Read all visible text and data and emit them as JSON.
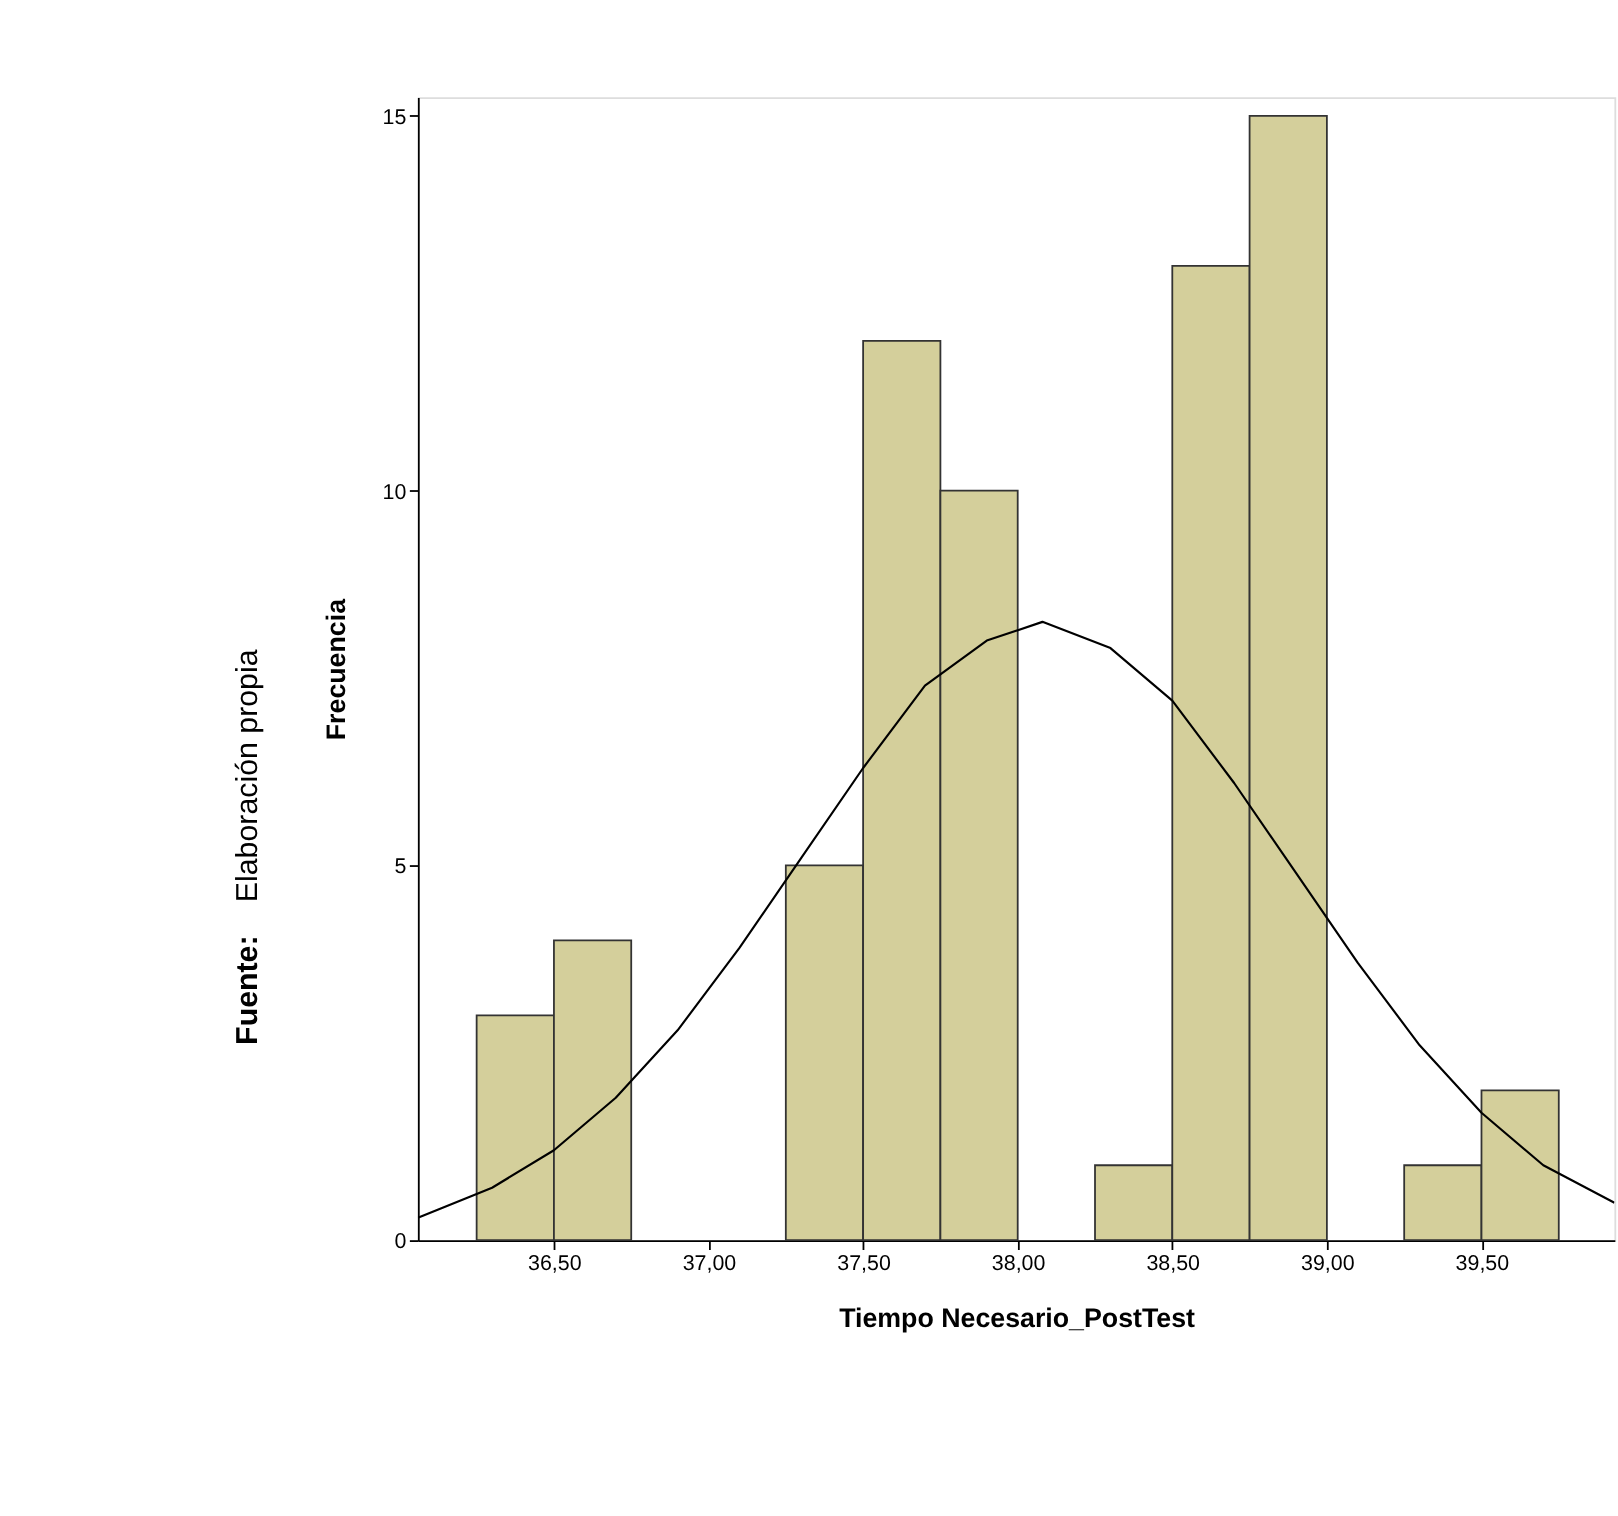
{
  "chart_data": {
    "type": "histogram",
    "xlabel": "Tiempo Necesario_PostTest",
    "ylabel": "Frecuencia",
    "annotations": [
      "Fuente:",
      "Elaboración propia"
    ],
    "bins": [
      36.25,
      36.5,
      36.75,
      37.0,
      37.25,
      37.5,
      37.75,
      38.0,
      38.25,
      38.5,
      38.75,
      39.0,
      39.25,
      39.5,
      39.75
    ],
    "values": [
      3,
      4,
      0,
      0,
      5,
      12,
      10,
      0,
      1,
      13,
      15,
      0,
      1,
      2
    ],
    "color": "#d4cf9b",
    "series": [
      {
        "type": "line",
        "color": "#000000",
        "x": [
          36.06,
          36.3,
          36.5,
          36.7,
          36.9,
          37.1,
          37.3,
          37.5,
          37.7,
          37.9,
          38.08,
          38.3,
          38.5,
          38.7,
          38.9,
          39.1,
          39.3,
          39.5,
          39.7,
          39.93
        ],
        "values": [
          0.3,
          0.7,
          1.2,
          1.9,
          2.8,
          3.9,
          5.1,
          6.3,
          7.4,
          8.0,
          8.25,
          7.9,
          7.2,
          6.1,
          4.9,
          3.7,
          2.6,
          1.7,
          1.0,
          0.5
        ]
      }
    ],
    "xlim": [
      36.06,
      39.93
    ],
    "ylim": [
      0,
      15.25
    ],
    "xticks": [
      {
        "value": 36.5,
        "label": "36,50"
      },
      {
        "value": 37.0,
        "label": "37,00"
      },
      {
        "value": 37.5,
        "label": "37,50"
      },
      {
        "value": 38.0,
        "label": "38,00"
      },
      {
        "value": 38.5,
        "label": "38,50"
      },
      {
        "value": 39.0,
        "label": "39,00"
      },
      {
        "value": 39.5,
        "label": "39,50"
      }
    ],
    "yticks": [
      0,
      5,
      10,
      15
    ],
    "grid": false
  }
}
